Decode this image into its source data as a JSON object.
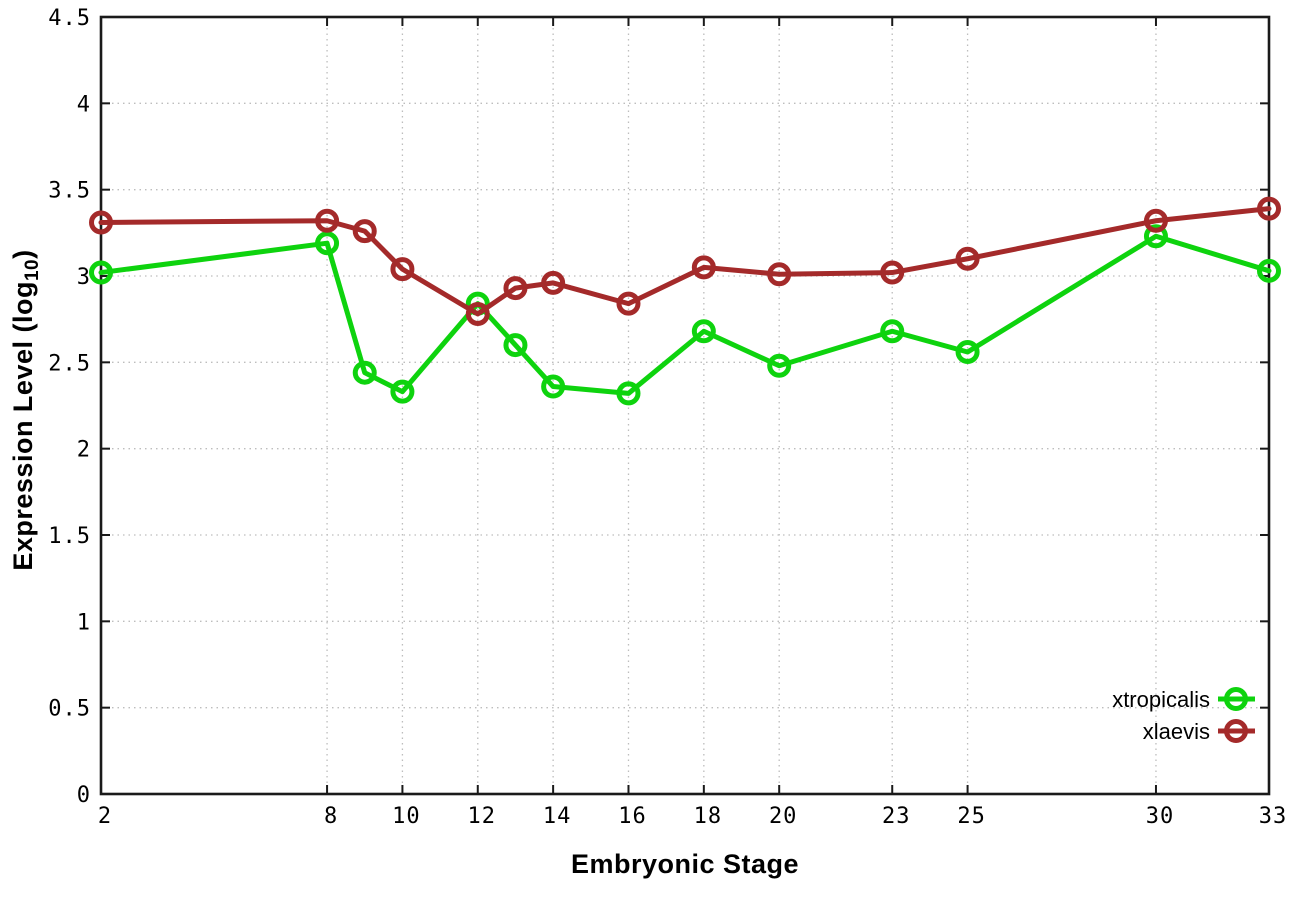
{
  "chart_data": {
    "type": "line",
    "title": "",
    "xlabel": "Embryonic Stage",
    "ylabel": {
      "text": "Expression Level (log",
      "sub": "10",
      "after": ")"
    },
    "x": [
      2,
      8,
      9,
      10,
      12,
      13,
      14,
      16,
      18,
      20,
      23,
      25,
      30,
      33
    ],
    "xlim": [
      2,
      33
    ],
    "ylim": [
      0,
      4.5
    ],
    "x_ticks": [
      2,
      8,
      10,
      12,
      14,
      16,
      18,
      20,
      23,
      25,
      30,
      33
    ],
    "x_tick_labels": [
      "2",
      "8",
      "10",
      "12",
      "14",
      "16",
      "18",
      "20",
      "23",
      "25",
      "30",
      "33"
    ],
    "y_ticks": [
      0,
      0.5,
      1,
      1.5,
      2,
      2.5,
      3,
      3.5,
      4,
      4.5
    ],
    "y_tick_labels": [
      "0",
      "0.5",
      "1",
      "1.5",
      "2",
      "2.5",
      "3",
      "3.5",
      "4",
      "4.5"
    ],
    "grid": true,
    "grid_style": "dotted",
    "legend_position": "bottom-right",
    "series": [
      {
        "name": "xtropicalis",
        "color": "#0ED30E",
        "marker": "open-circle",
        "values": [
          3.02,
          3.19,
          2.44,
          2.33,
          2.84,
          2.6,
          2.36,
          2.32,
          2.68,
          2.48,
          2.68,
          2.56,
          3.23,
          3.03
        ]
      },
      {
        "name": "xlaevis",
        "color": "#A42A2A",
        "marker": "open-circle",
        "values": [
          3.31,
          3.32,
          3.26,
          3.04,
          2.78,
          2.93,
          2.96,
          2.84,
          3.05,
          3.01,
          3.02,
          3.1,
          3.32,
          3.39
        ]
      }
    ],
    "colors": {
      "grid": "#bdbdbd",
      "axis": "#1a1a1a",
      "background": "#ffffff",
      "tick_text": "#000000"
    }
  }
}
